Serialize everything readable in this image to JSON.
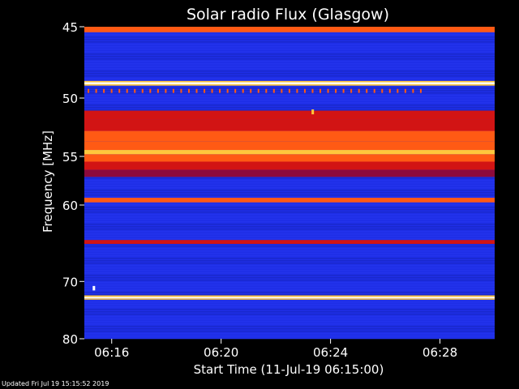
{
  "footer": {
    "updated": "Updated Fri Jul 19 15:15:52 2019"
  },
  "chart_data": {
    "type": "heatmap",
    "title": "Solar radio Flux (Glasgow)",
    "xlabel": "Start Time (11-Jul-19 06:15:00)",
    "ylabel": "Frequency [MHz]",
    "x_ticks": [
      "06:16",
      "06:20",
      "06:24",
      "06:28"
    ],
    "x_tick_minutes": [
      1,
      5,
      9,
      13
    ],
    "xlim_minutes": [
      0,
      15
    ],
    "y_ticks": [
      "45",
      "50",
      "55",
      "60",
      "70",
      "80"
    ],
    "y_tick_values": [
      45,
      50,
      55,
      60,
      70,
      80
    ],
    "ylim": [
      45,
      80
    ],
    "y_scale": "reciprocal",
    "colormap": [
      "#0a0a8c",
      "#1e2ee6",
      "#8c0a3c",
      "#d21414",
      "#ff5a14",
      "#ffc83c",
      "#ffffff"
    ],
    "bands": [
      {
        "freq_from": 45.0,
        "freq_to": 45.35,
        "level": 0.6
      },
      {
        "freq_from": 48.7,
        "freq_to": 48.8,
        "level": 0.85
      },
      {
        "freq_from": 48.8,
        "freq_to": 48.95,
        "level": 1.0
      },
      {
        "freq_from": 48.95,
        "freq_to": 49.05,
        "level": 0.85
      },
      {
        "freq_from": 51.0,
        "freq_to": 51.7,
        "level": 0.45
      },
      {
        "freq_from": 51.7,
        "freq_to": 52.7,
        "level": 0.55
      },
      {
        "freq_from": 52.7,
        "freq_to": 53.6,
        "level": 0.6
      },
      {
        "freq_from": 53.6,
        "freq_to": 54.4,
        "level": 0.68
      },
      {
        "freq_from": 54.4,
        "freq_to": 54.8,
        "level": 0.85
      },
      {
        "freq_from": 54.8,
        "freq_to": 55.5,
        "level": 0.66
      },
      {
        "freq_from": 55.5,
        "freq_to": 56.3,
        "level": 0.5
      },
      {
        "freq_from": 56.3,
        "freq_to": 57.0,
        "level": 0.4
      },
      {
        "freq_from": 59.2,
        "freq_to": 59.7,
        "level": 0.6
      },
      {
        "freq_from": 64.2,
        "freq_to": 64.7,
        "level": 0.45
      },
      {
        "freq_from": 72.2,
        "freq_to": 72.45,
        "level": 0.8
      },
      {
        "freq_from": 72.45,
        "freq_to": 72.7,
        "level": 1.0
      },
      {
        "freq_from": 72.7,
        "freq_to": 72.9,
        "level": 0.8
      }
    ],
    "spikes": {
      "freq_from": 49.3,
      "freq_to": 49.6,
      "start_minute": 0.15,
      "end_minute": 12.3,
      "count": 44,
      "level": 0.7
    },
    "bursts": [
      {
        "minute": 8.35,
        "freq_from": 50.9,
        "freq_to": 51.3,
        "level": 0.85
      },
      {
        "minute": 0.35,
        "freq_from": 70.7,
        "freq_to": 71.4,
        "level": 0.95
      }
    ]
  }
}
